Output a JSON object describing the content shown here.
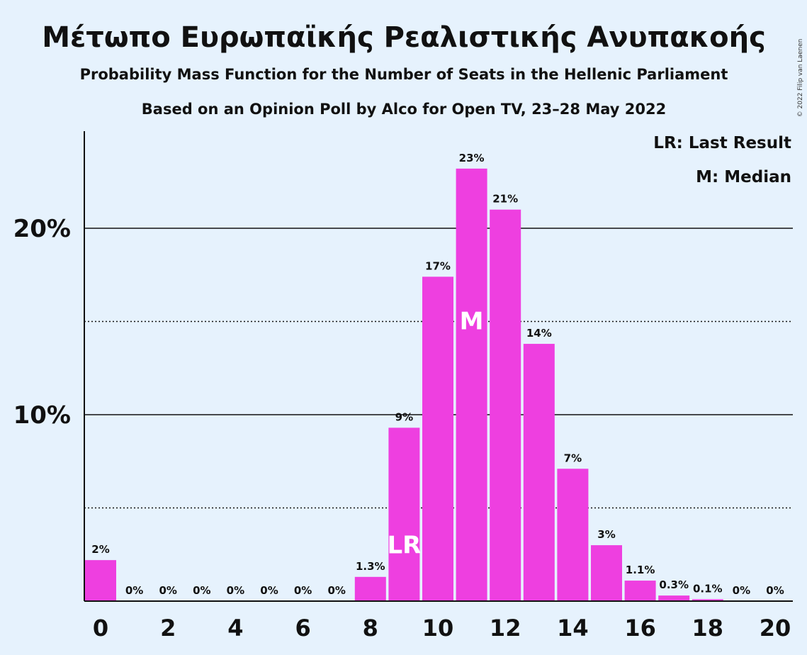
{
  "title": "Μέτωπο Ευρωπαϊκής Ρεαλιστικής Ανυπακοής",
  "subtitle": "Probability Mass Function for the Number of Seats in the Hellenic Parliament",
  "subtitle2": "Based on an Opinion Poll by Alco for Open TV, 23–28 May 2022",
  "copyright": "© 2022 Filip van Laenen",
  "colors": {
    "bar": "#ee3fe0",
    "background": "#e6f2fd",
    "text": "#111111"
  },
  "chart_data": {
    "type": "bar",
    "x": [
      0,
      1,
      2,
      3,
      4,
      5,
      6,
      7,
      8,
      9,
      10,
      11,
      12,
      13,
      14,
      15,
      16,
      17,
      18,
      19,
      20
    ],
    "values": [
      2.2,
      0,
      0,
      0,
      0,
      0,
      0,
      0,
      1.3,
      9.3,
      17.4,
      23.2,
      21.0,
      13.8,
      7.1,
      3.0,
      1.1,
      0.3,
      0.1,
      0,
      0
    ],
    "data_labels": [
      "2%",
      "0%",
      "0%",
      "0%",
      "0%",
      "0%",
      "0%",
      "0%",
      "1.3%",
      "9%",
      "17%",
      "23%",
      "21%",
      "14%",
      "7%",
      "3%",
      "1.1%",
      "0.3%",
      "0.1%",
      "0%",
      "0%"
    ],
    "x_tick_labels": [
      "0",
      "2",
      "4",
      "6",
      "8",
      "10",
      "12",
      "14",
      "16",
      "18",
      "20"
    ],
    "x_tick_values": [
      0,
      2,
      4,
      6,
      8,
      10,
      12,
      14,
      16,
      18,
      20
    ],
    "y_tick_labels": [
      "10%",
      "20%"
    ],
    "y_tick_values": [
      10,
      20
    ],
    "y_gridlines_solid": [
      10,
      20
    ],
    "y_gridlines_dotted": [
      5,
      15
    ],
    "ylim": [
      0,
      25
    ],
    "last_result": {
      "x": 9,
      "label": "LR"
    },
    "median": {
      "x": 11,
      "label": "M"
    },
    "legend": [
      "LR: Last Result",
      "M: Median"
    ],
    "legend_position": "top-right"
  }
}
